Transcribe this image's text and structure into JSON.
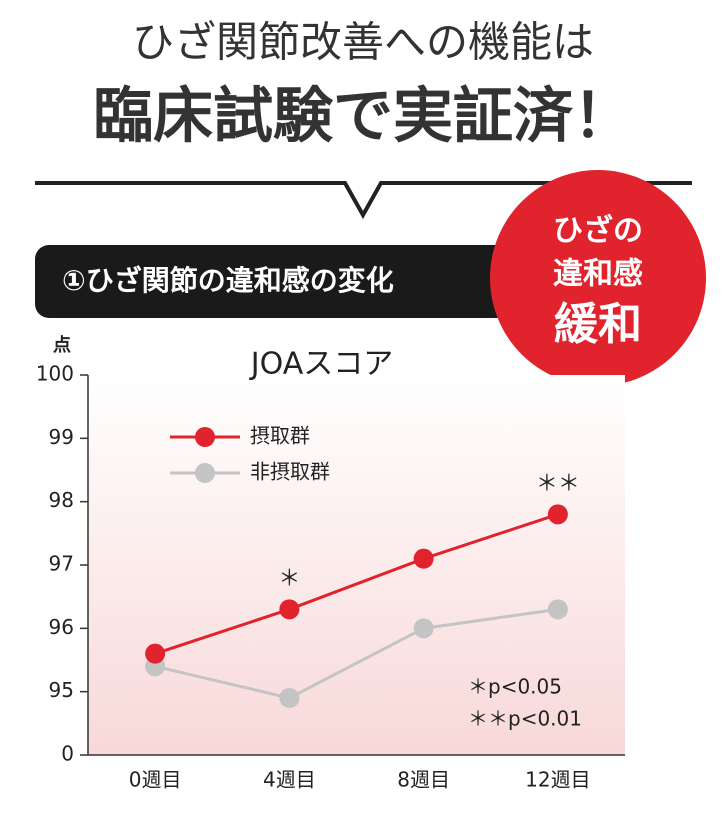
{
  "header": {
    "line1": "ひざ関節改善への機能は",
    "line2": "臨床試験で実証済！"
  },
  "banner": "①ひざ関節の違和感の変化",
  "badge": {
    "line1": "ひざの",
    "line2": "違和感",
    "line3": "緩和"
  },
  "chart_data": {
    "type": "line",
    "title": "JOAスコア",
    "y_label": "点",
    "categories": [
      "0週目",
      "4週目",
      "8週目",
      "12週目"
    ],
    "series": [
      {
        "name": "摂取群",
        "color": "#e0232d",
        "values": [
          95.6,
          96.3,
          97.1,
          97.8
        ]
      },
      {
        "name": "非摂取群",
        "color": "#c4c4c4",
        "values": [
          95.4,
          94.9,
          96.0,
          96.3
        ]
      }
    ],
    "significance": [
      null,
      "＊",
      null,
      "＊＊"
    ],
    "notes": [
      "＊p<0.05",
      "＊＊p<0.01"
    ],
    "ylim": [
      0,
      100
    ],
    "yticks": [
      0,
      95,
      96,
      97,
      98,
      99,
      100
    ],
    "y_axis_break": true,
    "legend": "top-left"
  }
}
